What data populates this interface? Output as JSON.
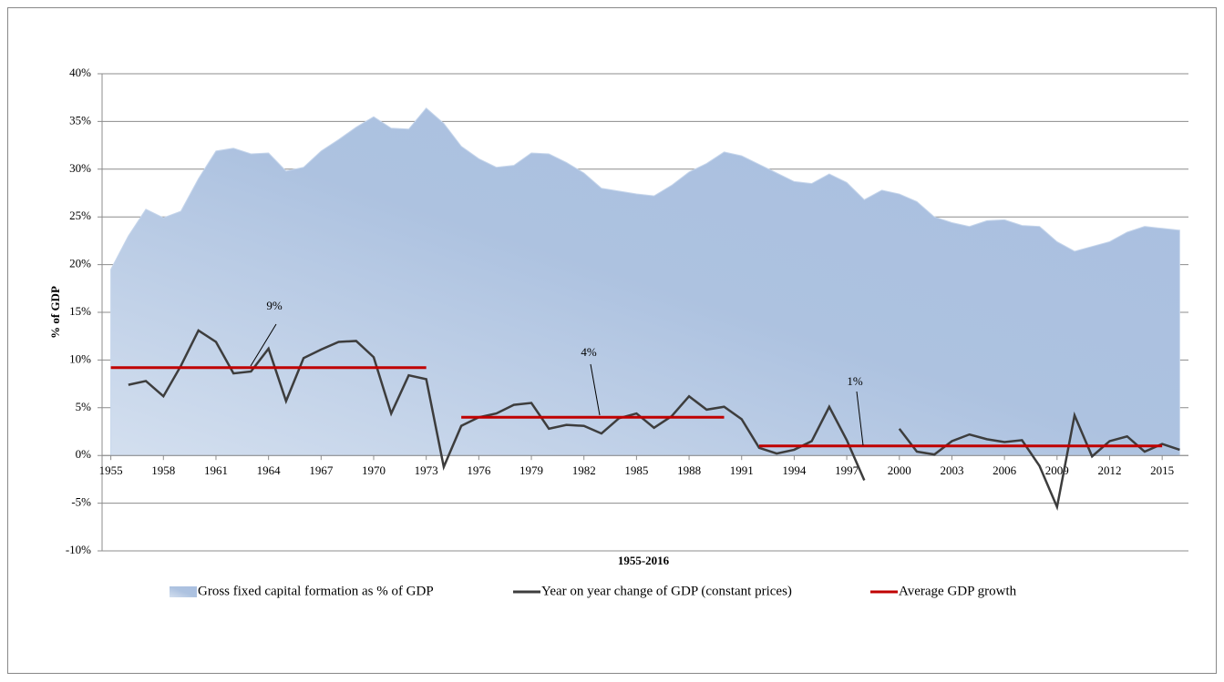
{
  "chart_data": {
    "type": "area-line",
    "y_label": "% of GDP",
    "x_label": "1955-2016",
    "x": [
      1955,
      1956,
      1957,
      1958,
      1959,
      1960,
      1961,
      1962,
      1963,
      1964,
      1965,
      1966,
      1967,
      1968,
      1969,
      1970,
      1971,
      1972,
      1973,
      1974,
      1975,
      1976,
      1977,
      1978,
      1979,
      1980,
      1981,
      1982,
      1983,
      1984,
      1985,
      1986,
      1987,
      1988,
      1989,
      1990,
      1991,
      1992,
      1993,
      1994,
      1995,
      1996,
      1997,
      1998,
      1999,
      2000,
      2001,
      2002,
      2003,
      2004,
      2005,
      2006,
      2007,
      2008,
      2009,
      2010,
      2011,
      2012,
      2013,
      2014,
      2015,
      2016
    ],
    "xlim": [
      1954.5,
      2016.5
    ],
    "xticks": [
      1955,
      1958,
      1961,
      1964,
      1967,
      1970,
      1973,
      1976,
      1979,
      1982,
      1985,
      1988,
      1991,
      1994,
      1997,
      2000,
      2003,
      2006,
      2009,
      2012,
      2015
    ],
    "ylim": [
      -10,
      40
    ],
    "yticks": [
      {
        "value": -10,
        "label": "-10%"
      },
      {
        "value": -5,
        "label": "-5%"
      },
      {
        "value": 0,
        "label": "0%"
      },
      {
        "value": 5,
        "label": "5%"
      },
      {
        "value": 10,
        "label": "10%"
      },
      {
        "value": 15,
        "label": "15%"
      },
      {
        "value": 20,
        "label": "20%"
      },
      {
        "value": 25,
        "label": "25%"
      },
      {
        "value": 30,
        "label": "30%"
      },
      {
        "value": 35,
        "label": "35%"
      },
      {
        "value": 40,
        "label": "40%"
      }
    ],
    "grid": true,
    "series": [
      {
        "name": "Gross fixed capital formation as % of GDP",
        "type": "area",
        "color": "#b3c6e3",
        "values": [
          19.5,
          23,
          25.8,
          24.9,
          25.6,
          29,
          31.9,
          32.2,
          31.6,
          31.7,
          29.8,
          30.2,
          31.9,
          33.1,
          34.4,
          35.5,
          34.3,
          34.2,
          36.4,
          34.8,
          32.4,
          31.1,
          30.2,
          30.4,
          31.7,
          31.6,
          30.7,
          29.6,
          28,
          27.7,
          27.4,
          27.2,
          28.3,
          29.7,
          30.6,
          31.8,
          31.4,
          30.5,
          29.6,
          28.7,
          28.5,
          29.5,
          28.6,
          26.8,
          27.8,
          27.4,
          26.6,
          25,
          24.4,
          24,
          24.6,
          24.7,
          24.1,
          24,
          22.4,
          21.4,
          21.9,
          22.4,
          23.4,
          24,
          23.8,
          23.6
        ]
      },
      {
        "name": "Year on year change of GDP (constant prices)",
        "type": "line",
        "color": "#3d3d3d",
        "values": [
          null,
          7.4,
          7.8,
          6.2,
          9.4,
          13.1,
          11.9,
          8.6,
          8.8,
          11.2,
          5.7,
          10.2,
          11.1,
          11.9,
          12,
          10.3,
          4.4,
          8.4,
          8,
          -1.2,
          3.1,
          4,
          4.4,
          5.3,
          5.5,
          2.8,
          3.2,
          3.1,
          2.3,
          3.9,
          4.4,
          2.9,
          4.1,
          6.2,
          4.8,
          5.1,
          3.8,
          0.8,
          0.2,
          0.6,
          1.5,
          5.1,
          1.6,
          -2.6,
          null,
          2.8,
          0.4,
          0.1,
          1.5,
          2.2,
          1.7,
          1.4,
          1.6,
          -1.1,
          -5.4,
          4.2,
          -0.1,
          1.5,
          2,
          0.4,
          1.2,
          0.6
        ]
      },
      {
        "name": "Average GDP growth",
        "type": "line",
        "color": "#c00000",
        "values": [
          9.2,
          9.2,
          9.2,
          9.2,
          9.2,
          9.2,
          9.2,
          9.2,
          9.2,
          9.2,
          9.2,
          9.2,
          9.2,
          9.2,
          9.2,
          9.2,
          9.2,
          9.2,
          9.2,
          null,
          4,
          4,
          4,
          4,
          4,
          4,
          4,
          4,
          4,
          4,
          4,
          4,
          4,
          4,
          4,
          4,
          null,
          1,
          1,
          1,
          1,
          1,
          1,
          1,
          1,
          1,
          1,
          1,
          1,
          1,
          1,
          1,
          1,
          1,
          1,
          1,
          1,
          1,
          1,
          1,
          1,
          null
        ]
      }
    ],
    "annotations": [
      "9%",
      "4%",
      "1%"
    ]
  }
}
